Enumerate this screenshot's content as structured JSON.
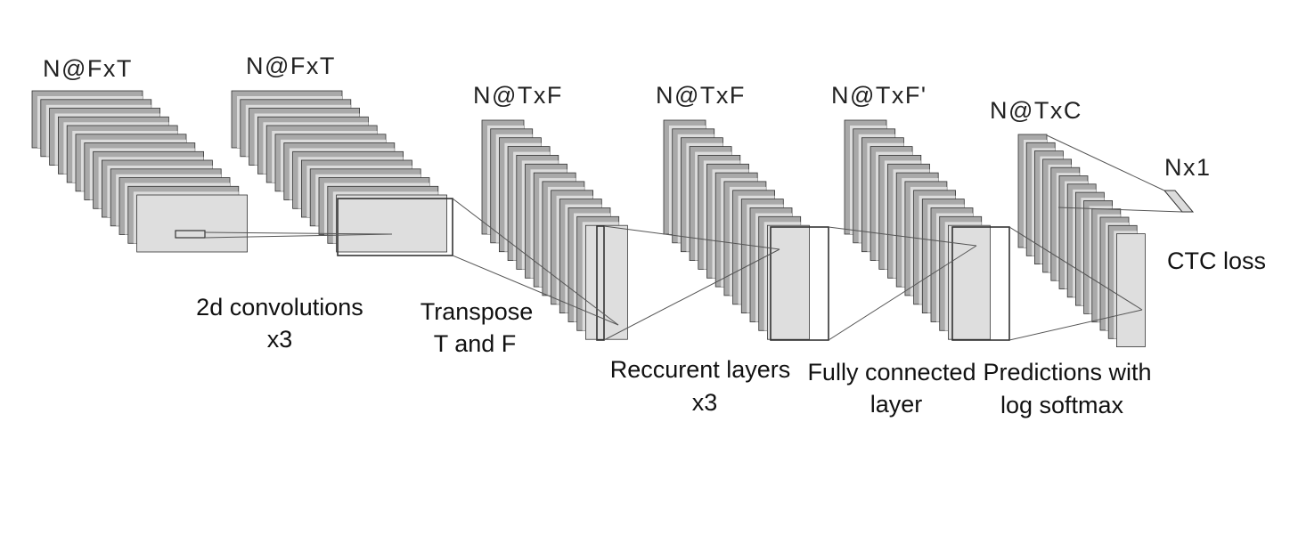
{
  "diagram": {
    "stages": [
      {
        "id": "input",
        "dim_label": "N@FxT"
      },
      {
        "id": "conv",
        "dim_label": "N@FxT"
      },
      {
        "id": "transpose",
        "dim_label": "N@TxF"
      },
      {
        "id": "recurrent",
        "dim_label": "N@TxF"
      },
      {
        "id": "fc",
        "dim_label": "N@TxF'"
      },
      {
        "id": "pred",
        "dim_label": "N@TxC"
      },
      {
        "id": "loss",
        "dim_label": "Nx1"
      }
    ],
    "captions": {
      "conv": {
        "line1": "2d convolutions",
        "line2": "x3"
      },
      "transpose": {
        "line1": "Transpose",
        "line2": "T and F"
      },
      "recurrent": {
        "line1": "Reccurent layers",
        "line2": "x3"
      },
      "fc": {
        "line1": "Fully connected",
        "line2": "layer"
      },
      "pred": {
        "line1": "Predictions with",
        "line2": "log softmax"
      },
      "loss": {
        "line1": "CTC loss"
      }
    },
    "colors": {
      "dark_sheet": "#a9a9a9",
      "light_sheet": "#dcdcdc",
      "front_sheet": "#dedede",
      "stroke": "#333333"
    }
  }
}
